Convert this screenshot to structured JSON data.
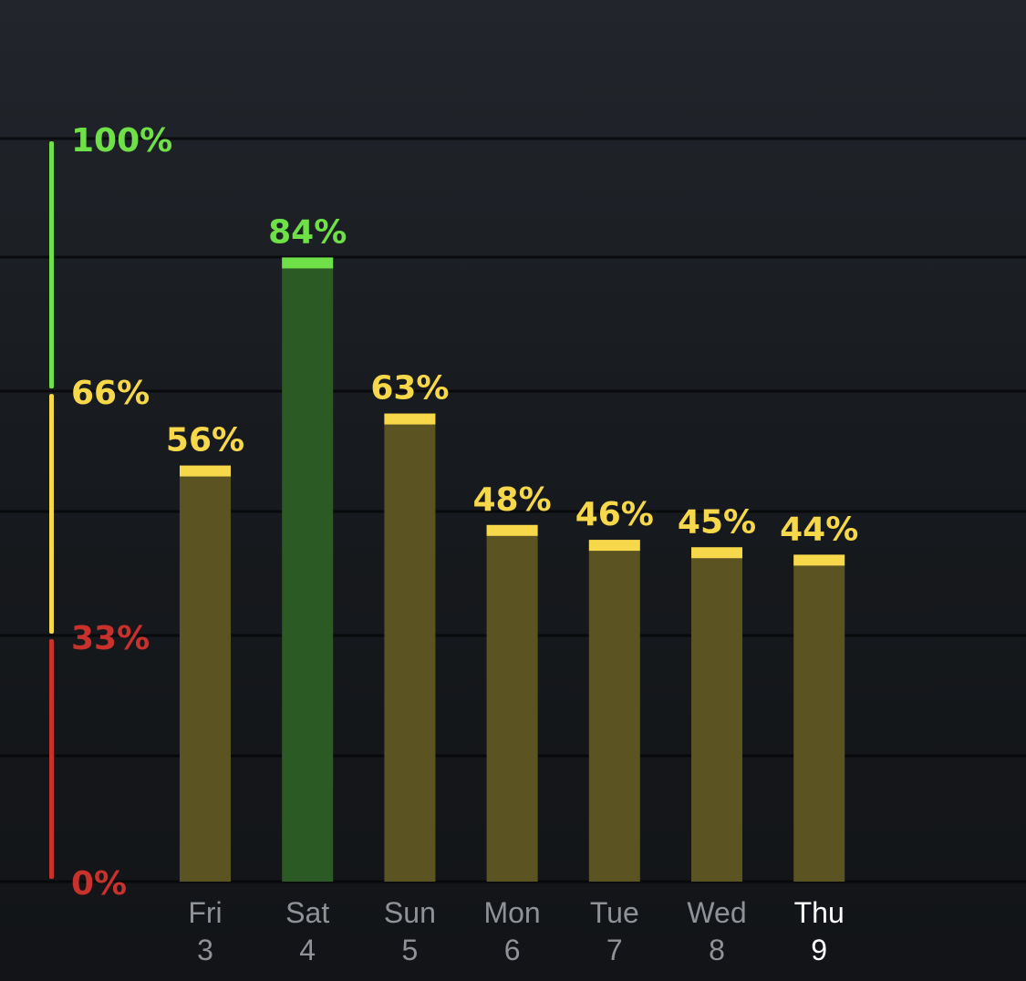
{
  "chart_data": {
    "type": "bar",
    "categories": [
      {
        "day": "Fri",
        "date": "3"
      },
      {
        "day": "Sat",
        "date": "4"
      },
      {
        "day": "Sun",
        "date": "5"
      },
      {
        "day": "Mon",
        "date": "6"
      },
      {
        "day": "Tue",
        "date": "7"
      },
      {
        "day": "Wed",
        "date": "8"
      },
      {
        "day": "Thu",
        "date": "9"
      }
    ],
    "values": [
      56,
      84,
      63,
      48,
      46,
      45,
      44
    ],
    "value_labels": [
      "56%",
      "84%",
      "63%",
      "48%",
      "46%",
      "45%",
      "44%"
    ],
    "highlighted_category": "Thu",
    "ylim": [
      0,
      100
    ],
    "grid": true,
    "scale": {
      "ticks": [
        {
          "value": 100,
          "label": "100%",
          "color": "#6fe048"
        },
        {
          "value": 66,
          "label": "66%",
          "color": "#f6d84a"
        },
        {
          "value": 33,
          "label": "33%",
          "color": "#c8312c"
        },
        {
          "value": 0,
          "label": "0%",
          "color": "#c8312c"
        }
      ],
      "zones": [
        {
          "from": 66,
          "to": 100,
          "color": "#6fe048"
        },
        {
          "from": 33,
          "to": 66,
          "color": "#f6d84a"
        },
        {
          "from": 0,
          "to": 33,
          "color": "#c8312c"
        }
      ]
    }
  },
  "colors": {
    "green": "#6fe048",
    "green_bar": "#2c5a25",
    "yellow": "#f6d84a",
    "yellow_bar": "#5b5322",
    "red": "#c8312c",
    "day_label": "#8f9297",
    "day_label_active": "#ffffff",
    "grid": "#050607"
  }
}
